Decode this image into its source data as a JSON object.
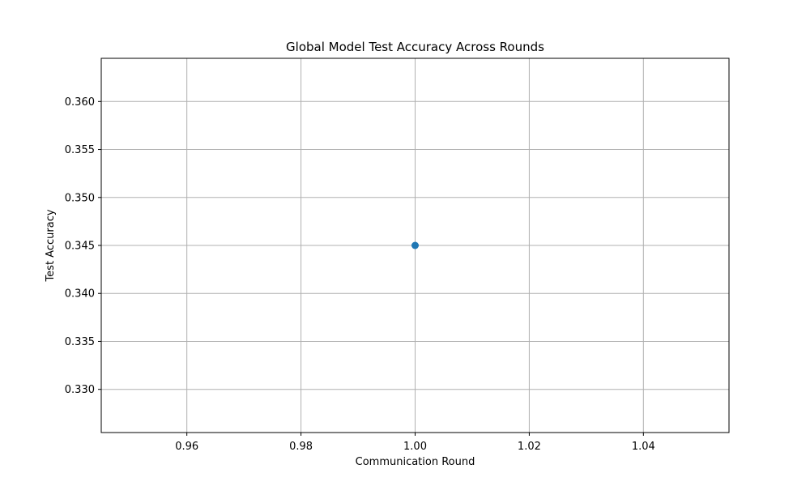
{
  "chart_data": {
    "type": "line",
    "title": "Global Model Test Accuracy Across Rounds",
    "xlabel": "Communication Round",
    "ylabel": "Test Accuracy",
    "xlim": [
      0.945,
      1.055
    ],
    "ylim": [
      0.3255,
      0.3645
    ],
    "xticks": [
      0.96,
      0.98,
      1.0,
      1.02,
      1.04
    ],
    "xtick_labels": [
      "0.96",
      "0.98",
      "1.00",
      "1.02",
      "1.04"
    ],
    "yticks": [
      0.33,
      0.335,
      0.34,
      0.345,
      0.35,
      0.355,
      0.36
    ],
    "ytick_labels": [
      "0.330",
      "0.335",
      "0.340",
      "0.345",
      "0.350",
      "0.355",
      "0.360"
    ],
    "grid": true,
    "series": [
      {
        "x": [
          1
        ],
        "y": [
          0.345
        ],
        "marker": "circle",
        "color": "#1f77b4"
      }
    ]
  }
}
